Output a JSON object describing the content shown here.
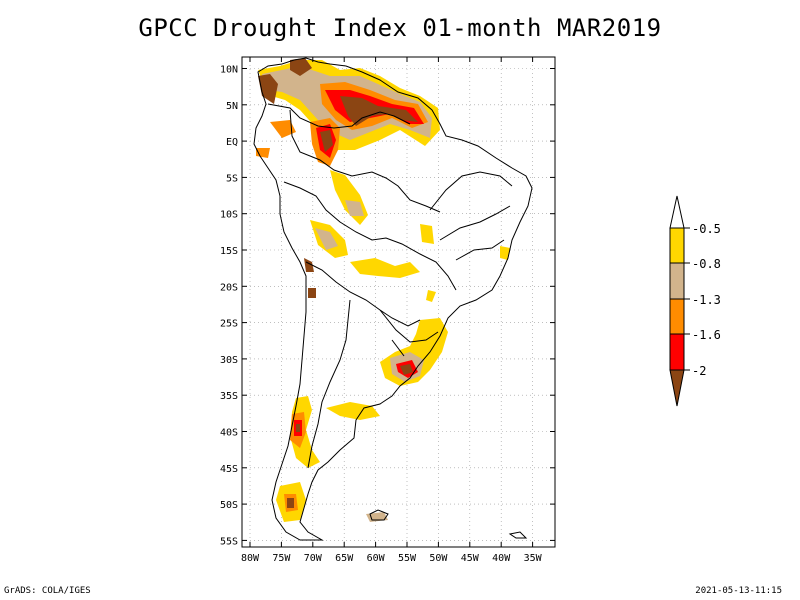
{
  "title": "GPCC Drought Index 01-month MAR2019",
  "footer": {
    "left": "GrADS: COLA/IGES",
    "right": "2021-05-13-11:15"
  },
  "axes": {
    "lat_labels": [
      "10N",
      "5N",
      "EQ",
      "5S",
      "10S",
      "15S",
      "20S",
      "25S",
      "30S",
      "35S",
      "40S",
      "45S",
      "50S",
      "55S"
    ],
    "lon_labels": [
      "80W",
      "75W",
      "70W",
      "65W",
      "60W",
      "55W",
      "50W",
      "45W",
      "40W",
      "35W"
    ]
  },
  "colorbar": {
    "labels": [
      "-0.5",
      "-0.8",
      "-1.3",
      "-1.6",
      "-2"
    ],
    "colors": [
      "#ffffff",
      "#ffd700",
      "#d2b48c",
      "#ff8c00",
      "#ff0000",
      "#8b4513"
    ]
  },
  "colors": {
    "yellow": "#ffd700",
    "tan": "#d2b48c",
    "orange": "#ff8c00",
    "red": "#ff0000",
    "brown": "#8b4513"
  }
}
